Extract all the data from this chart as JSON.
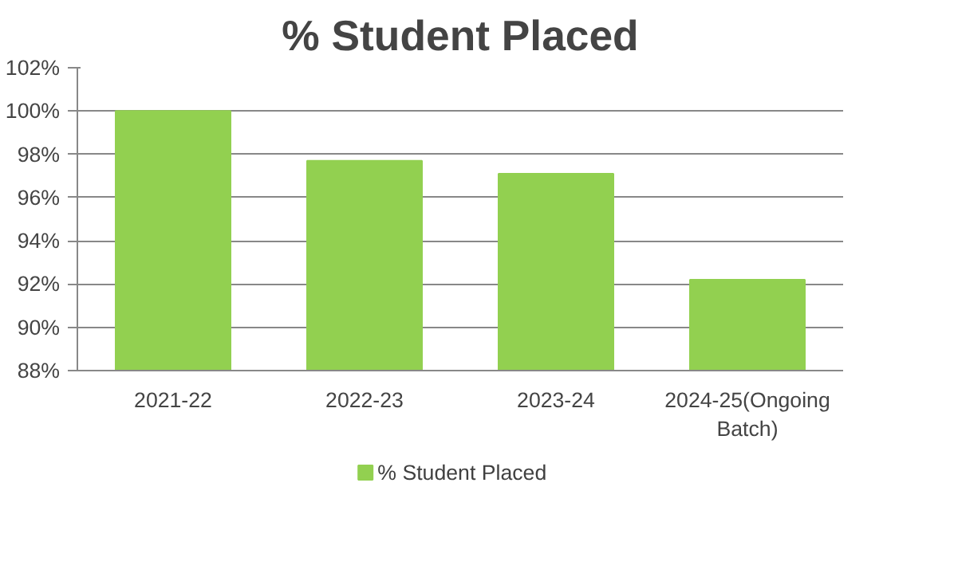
{
  "chart_data": {
    "type": "bar",
    "title": "% Student Placed",
    "categories": [
      "2021-22",
      "2022-23",
      "2023-24",
      "2024-25(Ongoing Batch)"
    ],
    "series": [
      {
        "name": "% Student Placed",
        "color": "#92d050",
        "values": [
          100,
          97.7,
          97.1,
          92.2
        ]
      }
    ],
    "ylim": [
      88,
      102
    ],
    "yticks": [
      {
        "value": 88,
        "label": "88%"
      },
      {
        "value": 90,
        "label": "90%"
      },
      {
        "value": 92,
        "label": "92%"
      },
      {
        "value": 94,
        "label": "94%"
      },
      {
        "value": 96,
        "label": "96%"
      },
      {
        "value": 98,
        "label": "98%"
      },
      {
        "value": 100,
        "label": "100%"
      },
      {
        "value": 102,
        "label": "102%"
      }
    ],
    "grid": "y",
    "legend": "bottom"
  }
}
